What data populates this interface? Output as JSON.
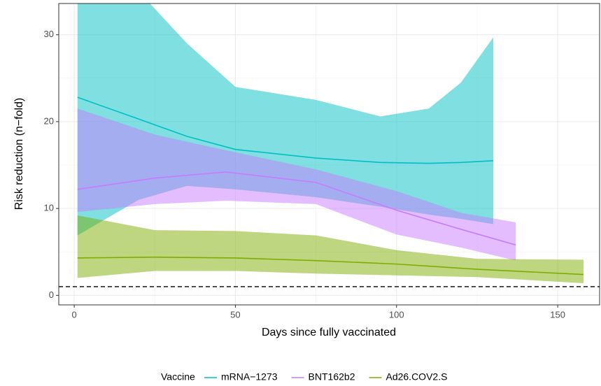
{
  "chart_data": {
    "type": "line",
    "x_label": "Days since fully vaccinated",
    "y_label": "Risk reduction (n−fold)",
    "legend_title": "Vaccine",
    "legend": "bottom",
    "grid": true,
    "xlim": [
      -4.8,
      163
    ],
    "ylim": [
      -1.1,
      33.6
    ],
    "xticks": [
      0,
      50,
      100,
      150
    ],
    "yticks": [
      0,
      10,
      20,
      30
    ],
    "xminor": [
      25,
      75,
      125
    ],
    "yminor": [
      5,
      15,
      25
    ],
    "hline": 1,
    "series": [
      {
        "name": "mRNA−1273",
        "color": "#00BFC4",
        "x": [
          1,
          20,
          35,
          50,
          75,
          95,
          110,
          120,
          130
        ],
        "values": [
          22.8,
          20.3,
          18.3,
          16.8,
          15.8,
          15.3,
          15.2,
          15.3,
          15.5
        ],
        "upper": [
          45,
          35,
          29,
          24,
          22.5,
          20.6,
          21.5,
          24.5,
          29.7
        ],
        "lower": [
          6.9,
          11.0,
          12.6,
          12.2,
          11.3,
          10.2,
          9.3,
          8.8,
          8.2
        ]
      },
      {
        "name": "BNT162b2",
        "color": "#C77CFF",
        "x": [
          1,
          25,
          47,
          75,
          100,
          120,
          137
        ],
        "values": [
          12.2,
          13.5,
          14.2,
          13.0,
          9.8,
          7.6,
          5.8
        ],
        "upper": [
          21.5,
          18.5,
          16.7,
          14.5,
          12.0,
          9.5,
          8.4
        ],
        "lower": [
          9.6,
          10.5,
          10.9,
          10.5,
          7.0,
          5.5,
          4.0
        ]
      },
      {
        "name": "Ad26.COV2.S",
        "color": "#7CAE00",
        "x": [
          1,
          25,
          50,
          75,
          100,
          125,
          158
        ],
        "values": [
          4.3,
          4.4,
          4.3,
          4.0,
          3.6,
          3.0,
          2.4
        ],
        "upper": [
          9.2,
          7.5,
          7.4,
          6.9,
          5.2,
          4.2,
          4.1
        ],
        "lower": [
          2.0,
          2.8,
          2.8,
          2.5,
          2.3,
          2.1,
          1.4
        ]
      }
    ]
  }
}
